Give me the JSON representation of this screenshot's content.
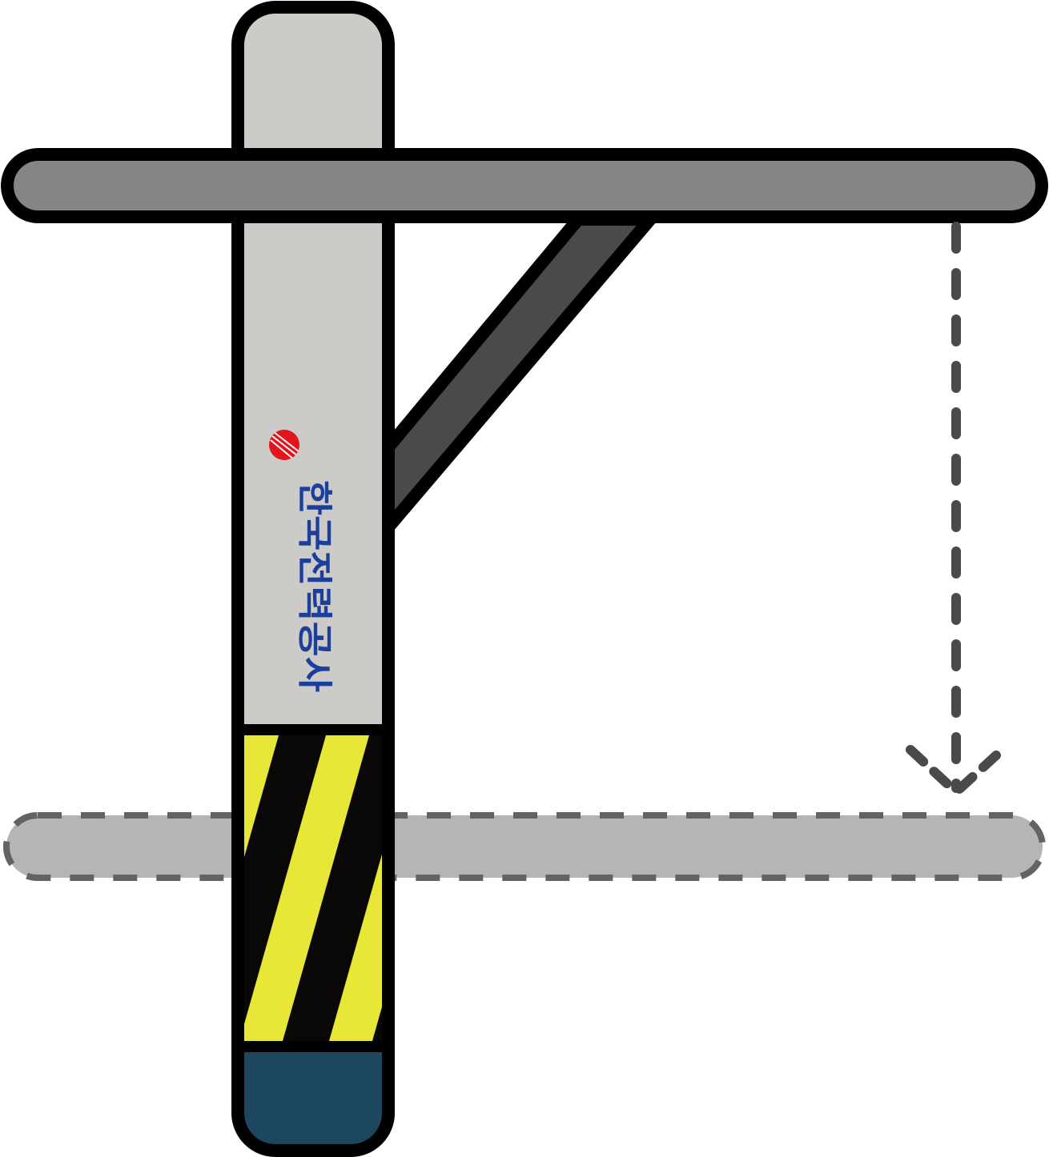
{
  "illustration": {
    "logo_text": "한국전력공사",
    "colors": {
      "pole_body": "#cccbc7",
      "crossarm": "#858683",
      "brace": "#4a4a4a",
      "outline": "#000000",
      "stripe_yellow": "#e8e636",
      "stripe_black": "#0a0707",
      "pole_base": "#1c475e",
      "ghost_crossarm": "#b5b5b5",
      "ghost_outline": "#636363",
      "logo_text": "#1d3f9b",
      "logo_red": "#e3141c"
    }
  }
}
